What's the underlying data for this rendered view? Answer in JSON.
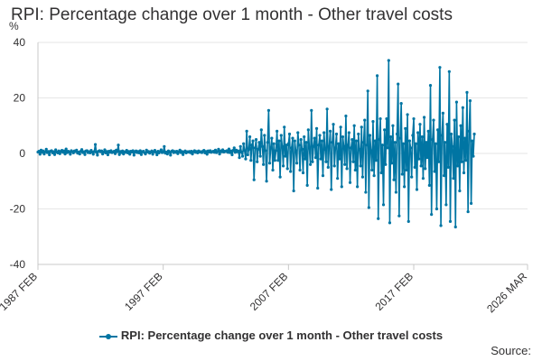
{
  "chart_data": {
    "type": "line",
    "title": "RPI: Percentage change over 1 month - Other travel costs",
    "ylabel": "%",
    "xlabel": "",
    "ylim": [
      -40,
      40
    ],
    "yticks": [
      40,
      20,
      0,
      -20,
      -40
    ],
    "x_range": [
      "1987 FEB",
      "2026 MAR"
    ],
    "xtick_labels": [
      "1987 FEB",
      "1997 FEB",
      "2007 FEB",
      "2017 FEB",
      "2026 MAR"
    ],
    "grid": true,
    "legend_position": "bottom",
    "series": [
      {
        "name": "RPI: Percentage change over 1 month - Other travel costs",
        "color": "#0075a3",
        "x_start": "1987 FEB",
        "frequency": "monthly",
        "values": [
          0.5,
          0.8,
          -0.3,
          1.2,
          0.4,
          0.9,
          -0.2,
          0.6,
          1.5,
          0.3,
          0.7,
          -0.5,
          0.8,
          1.0,
          0.2,
          0.6,
          -0.4,
          1.3,
          0.5,
          0.2,
          0.9,
          -0.1,
          0.7,
          1.1,
          0.4,
          0.9,
          -0.2,
          1.6,
          0.3,
          0.8,
          0.5,
          -0.3,
          1.0,
          0.6,
          0.2,
          0.9,
          0.7,
          1.2,
          0.1,
          0.5,
          -0.2,
          0.8,
          1.4,
          0.3,
          0.6,
          -0.4,
          0.9,
          1.0,
          0.3,
          0.6,
          0.2,
          1.1,
          0.5,
          -0.3,
          0.7,
          3.2,
          0.4,
          -0.6,
          0.8,
          1.0,
          0.6,
          0.9,
          -0.2,
          0.5,
          1.3,
          0.2,
          0.7,
          -0.5,
          0.8,
          0.4,
          1.0,
          0.3,
          0.5,
          0.8,
          -0.1,
          1.2,
          0.6,
          3.0,
          -0.4,
          0.7,
          0.3,
          0.9,
          -0.2,
          0.6,
          0.4,
          1.1,
          0.2,
          0.7,
          -0.3,
          0.8,
          0.5,
          1.0,
          -0.6,
          0.6,
          0.9,
          0.3,
          0.7,
          0.2,
          1.0,
          -0.4,
          0.6,
          0.8,
          0.3,
          -0.2,
          1.2,
          0.5,
          0.7,
          0.1,
          0.5,
          0.9,
          -0.3,
          0.6,
          1.1,
          0.4,
          -0.5,
          0.8,
          0.2,
          0.7,
          1.3,
          0.3,
          0.6,
          2.5,
          0.1,
          0.5,
          -0.2,
          0.9,
          0.4,
          -0.6,
          0.8,
          1.0,
          0.3,
          0.7,
          0.4,
          0.8,
          -0.1,
          0.6,
          1.2,
          0.3,
          0.7,
          -0.4,
          0.5,
          0.9,
          0.2,
          0.6,
          0.5,
          0.7,
          0.3,
          0.8,
          -0.2,
          0.6,
          1.0,
          0.4,
          0.7,
          0.2,
          0.9,
          0.5,
          0.6,
          0.3,
          0.8,
          1.1,
          0.2,
          0.7,
          -0.3,
          0.9,
          0.5,
          1.0,
          0.4,
          0.6,
          0.8,
          0.4,
          1.2,
          0.3,
          0.7,
          1.5,
          -0.2,
          0.9,
          0.6,
          1.3,
          0.5,
          0.8,
          0.7,
          1.0,
          0.4,
          1.6,
          0.3,
          0.9,
          -0.5,
          1.1,
          2.0,
          0.4,
          1.2,
          0.6,
          0.9,
          -1.5,
          2.5,
          0.5,
          -1.0,
          3.5,
          1.0,
          -2.0,
          8.0,
          -0.5,
          1.5,
          6.0,
          -2.5,
          3.0,
          4.5,
          -9.5,
          2.0,
          5.0,
          -3.0,
          1.5,
          4.0,
          -1.0,
          8.5,
          2.5,
          -4.0,
          6.5,
          1.0,
          -10.0,
          4.0,
          15.5,
          -3.5,
          2.0,
          5.5,
          -6.0,
          3.5,
          -2.5,
          1.0,
          8.0,
          -2.5,
          4.5,
          -8.5,
          6.5,
          2.5,
          -4.5,
          9.5,
          -1.0,
          3.0,
          -5.5,
          3.5,
          7.0,
          -6.5,
          2.0,
          5.5,
          -13.5,
          4.5,
          1.0,
          -3.5,
          7.5,
          3.0,
          -6.0,
          5.0,
          1.5,
          -7.0,
          6.0,
          -2.0,
          4.0,
          -11.5,
          8.5,
          2.0,
          -4.0,
          15.5,
          -3.0,
          2.5,
          5.5,
          -1.5,
          9.0,
          -12.5,
          3.0,
          6.5,
          -2.0,
          4.5,
          -8.0,
          7.5,
          1.5,
          -3.0,
          16.0,
          -5.0,
          2.5,
          8.0,
          -13.0,
          4.0,
          10.5,
          -4.5,
          2.0,
          7.0,
          -9.0,
          3.5,
          -2.0,
          9.5,
          -12.0,
          6.0,
          2.5,
          -4.0,
          13.5,
          -5.5,
          3.0,
          7.5,
          -10.5,
          2.0,
          5.0,
          -3.0,
          10.0,
          -6.0,
          4.5,
          -12.0,
          7.0,
          1.5,
          -4.5,
          9.5,
          -8.5,
          4.0,
          12.0,
          -14.0,
          3.0,
          22.5,
          -19.5,
          6.5,
          1.0,
          -6.0,
          11.5,
          -8.0,
          4.5,
          -2.5,
          28.0,
          -23.5,
          5.0,
          12.5,
          -7.0,
          3.0,
          -18.5,
          8.5,
          -4.0,
          12.5,
          2.0,
          33.5,
          -25.0,
          6.0,
          -3.5,
          10.0,
          -9.5,
          4.0,
          -14.0,
          7.0,
          25.0,
          -22.5,
          5.5,
          18.0,
          -7.5,
          3.5,
          -12.0,
          9.0,
          -6.0,
          14.0,
          -24.5,
          4.5,
          2.0,
          -8.5,
          6.5,
          12.5,
          -5.0,
          3.5,
          -13.0,
          7.5,
          -2.0,
          10.5,
          -4.5,
          6.0,
          -9.0,
          13.0,
          -5.5,
          4.0,
          -1.5,
          8.0,
          -11.5,
          24.5,
          -22.0,
          5.0,
          12.0,
          -6.5,
          3.5,
          -20.0,
          8.5,
          -3.0,
          31.0,
          -26.0,
          6.5,
          14.5,
          -8.0,
          4.0,
          -18.5,
          10.5,
          -5.0,
          29.5,
          -24.5,
          7.0,
          2.5,
          -9.0,
          12.0,
          -26.5,
          18.5,
          -4.5,
          6.0,
          -13.5,
          10.0,
          -3.0,
          16.5,
          -7.0,
          5.5,
          -2.5,
          22.0,
          -21.0,
          8.0,
          19.0,
          -18.0,
          4.5,
          -1.0,
          7.0
        ]
      }
    ]
  },
  "source_label": "Source:"
}
